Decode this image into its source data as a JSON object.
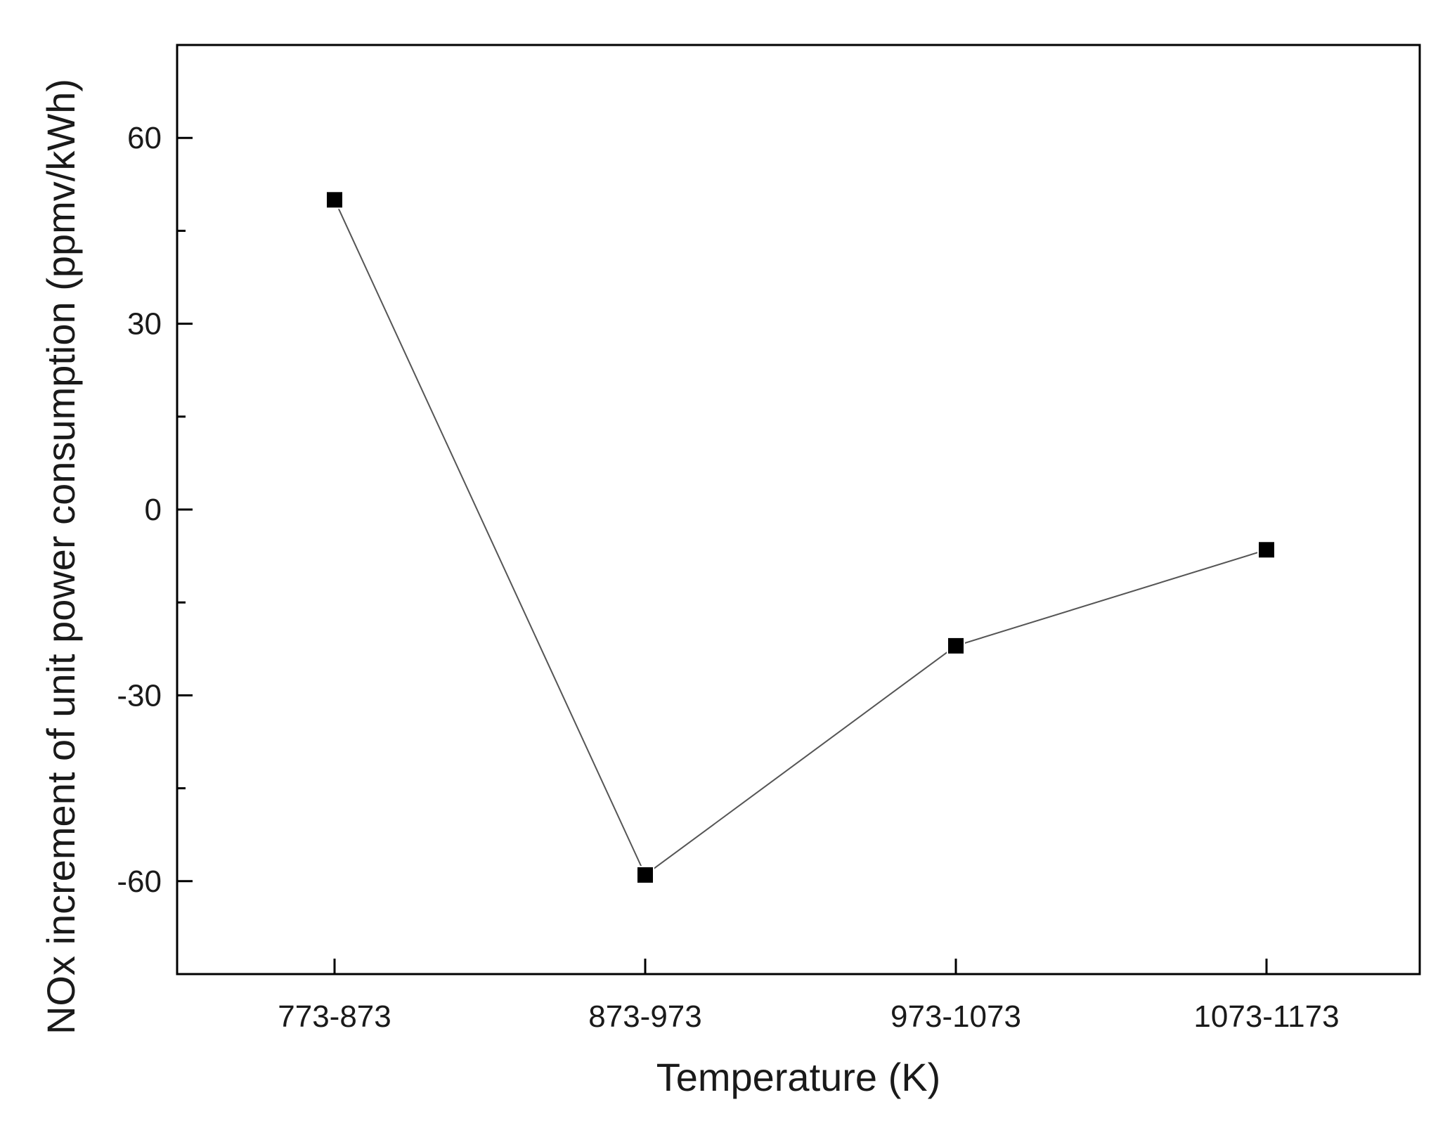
{
  "chart_data": {
    "type": "line",
    "title": "",
    "xlabel": "Temperature (K)",
    "ylabel": "NOx increment of unit power consumption (ppmv/kWh)",
    "categories": [
      "773-873",
      "873-973",
      "973-1073",
      "1073-1173"
    ],
    "series": [
      {
        "values": [
          50,
          -59,
          -22,
          -6.5
        ],
        "marker": "square",
        "color": "#000000"
      }
    ],
    "ylim": [
      -75,
      75
    ],
    "yticks_major": [
      -60,
      -30,
      0,
      30,
      60
    ],
    "yticks_minor": [
      -45,
      -15,
      15,
      45
    ],
    "grid": false,
    "legend": "none",
    "colors": {
      "line": "#555555",
      "marker": "#000000",
      "frame": "#000000"
    }
  }
}
